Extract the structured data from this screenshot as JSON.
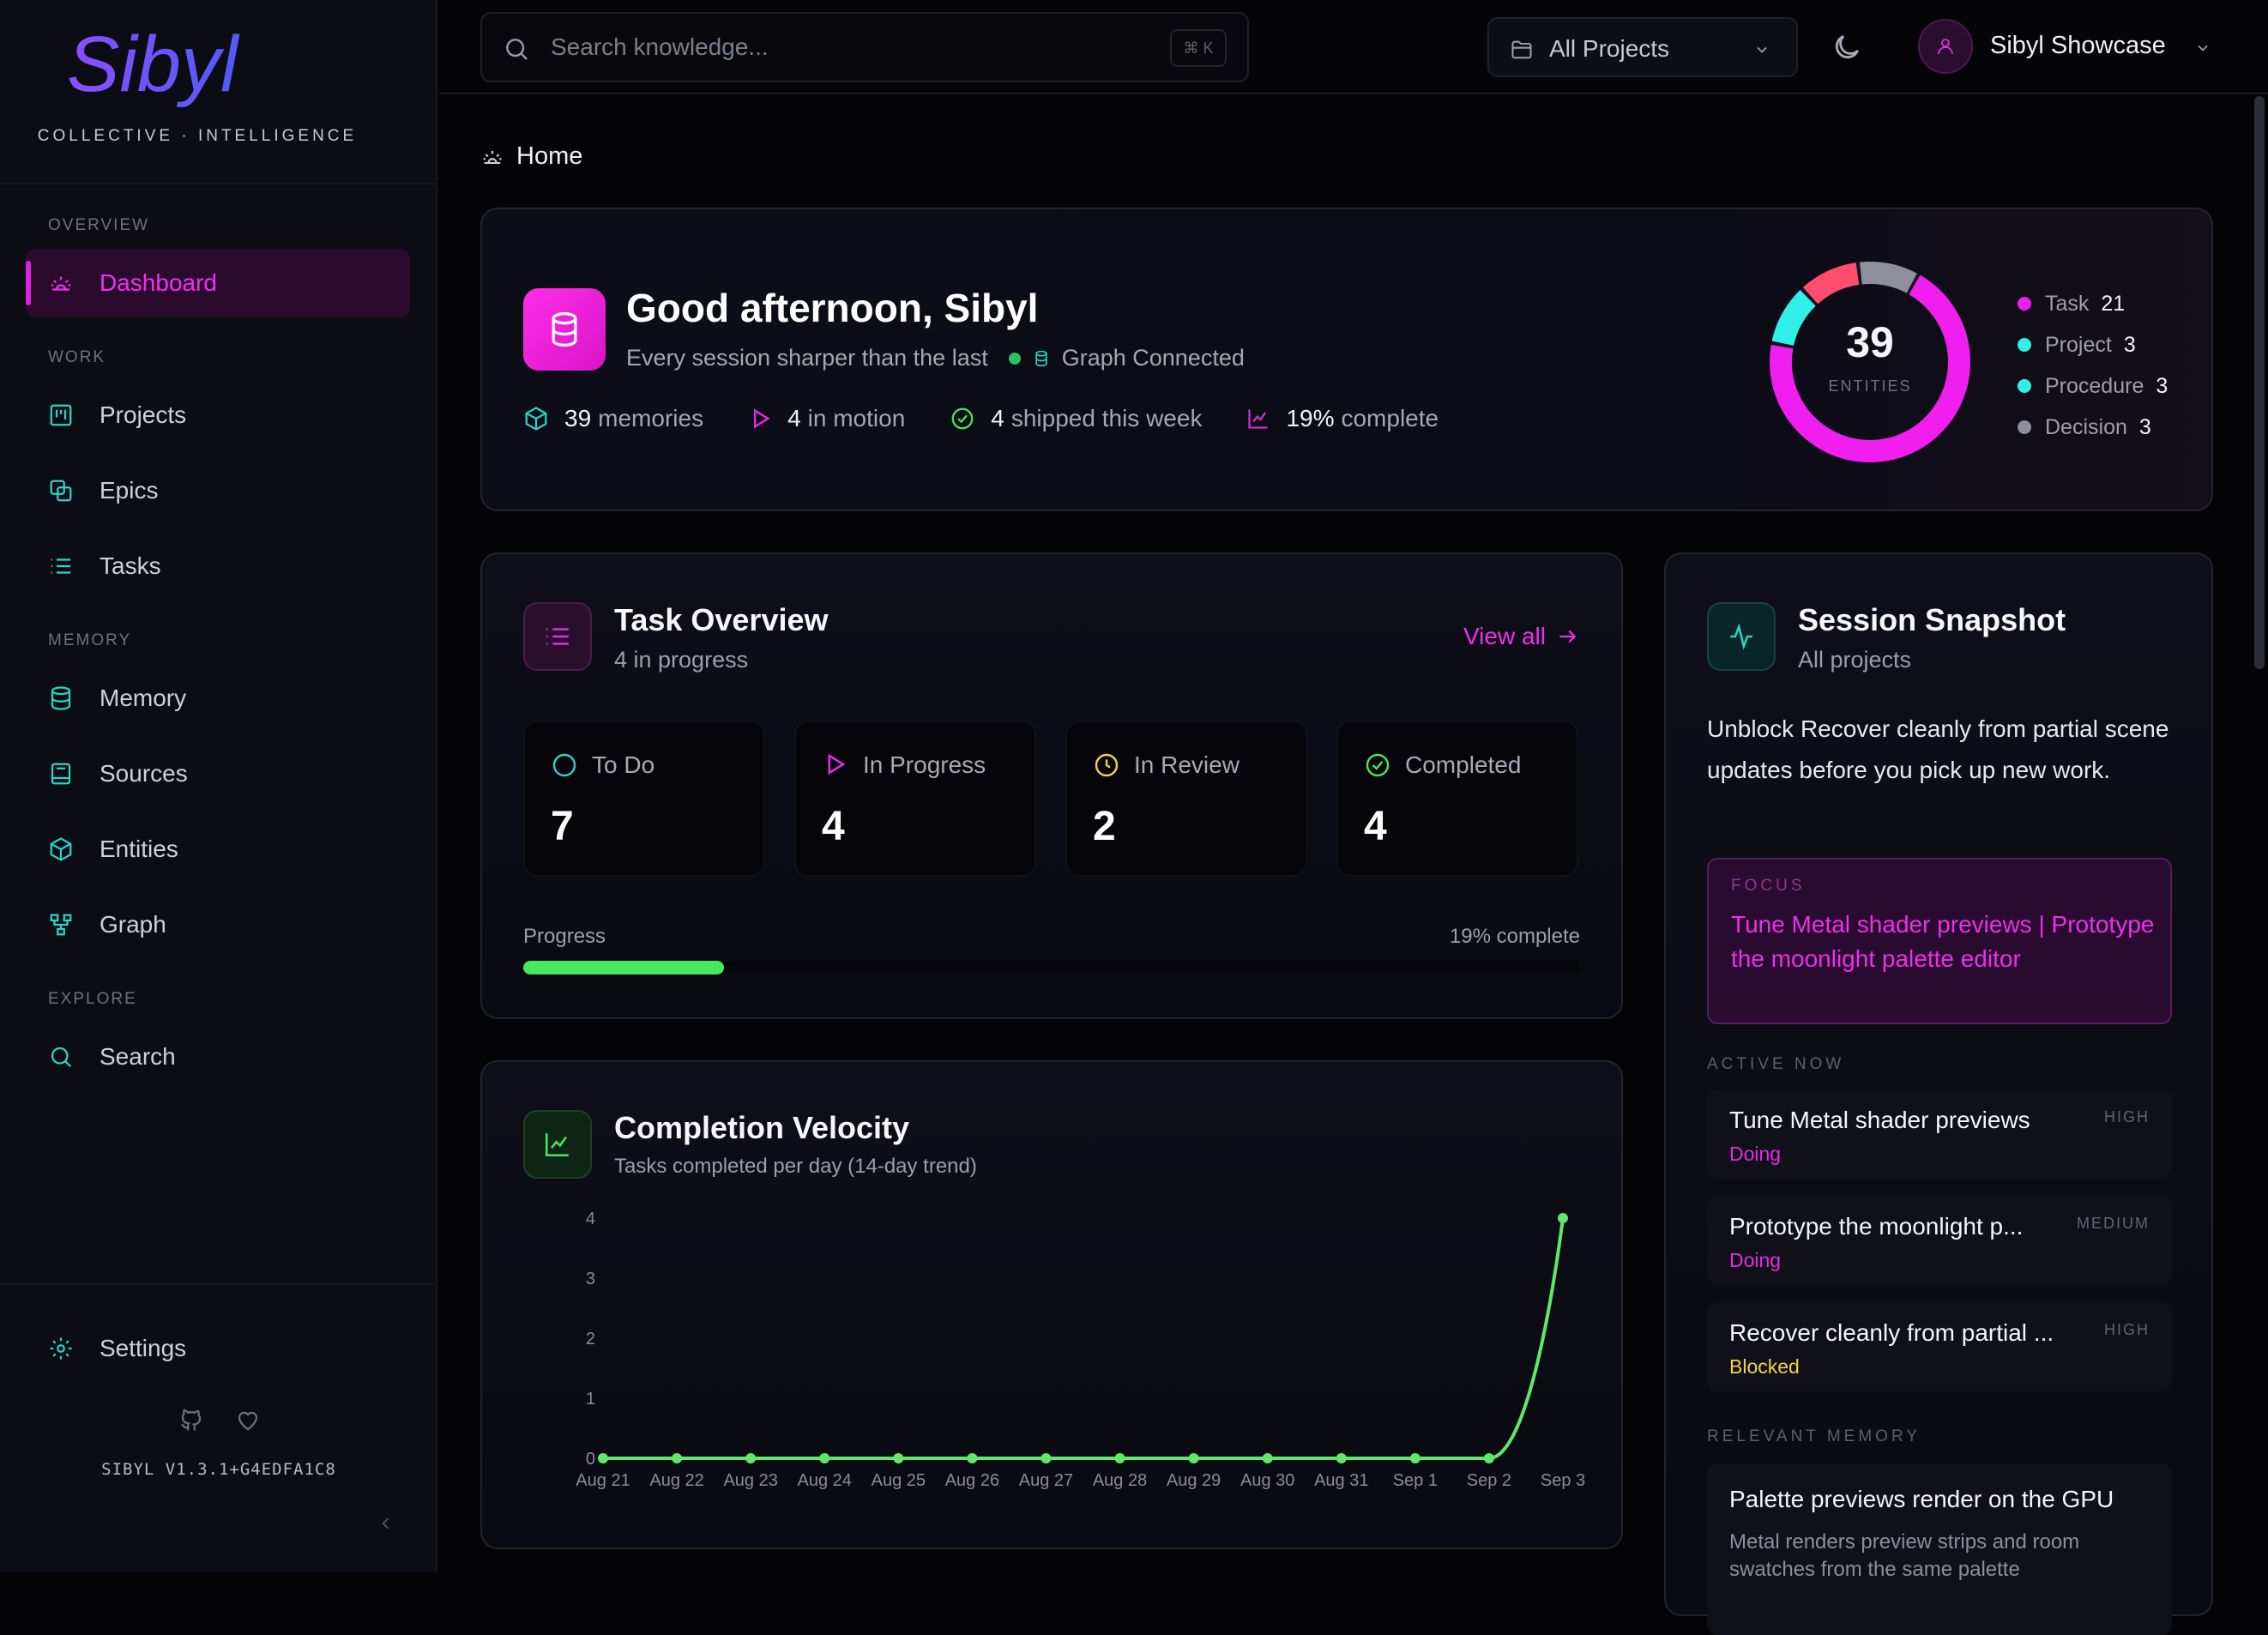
{
  "brand": {
    "name": "Sibyl",
    "tagline": "COLLECTIVE · INTELLIGENCE"
  },
  "sidebar": {
    "sections": [
      {
        "label": "OVERVIEW"
      },
      {
        "label": "WORK"
      },
      {
        "label": "MEMORY"
      },
      {
        "label": "EXPLORE"
      }
    ],
    "items": [
      {
        "label": "Dashboard",
        "icon": "sun-icon",
        "active": true
      },
      {
        "label": "Projects",
        "icon": "kanban-icon"
      },
      {
        "label": "Epics",
        "icon": "layers-icon"
      },
      {
        "label": "Tasks",
        "icon": "list-icon"
      },
      {
        "label": "Memory",
        "icon": "database-icon"
      },
      {
        "label": "Sources",
        "icon": "book-icon"
      },
      {
        "label": "Entities",
        "icon": "box-icon"
      },
      {
        "label": "Graph",
        "icon": "network-icon"
      },
      {
        "label": "Search",
        "icon": "search-icon"
      }
    ],
    "settings_label": "Settings",
    "version": "SIBYL V1.3.1+G4EDFA1C8"
  },
  "topbar": {
    "search_placeholder": "Search knowledge...",
    "shortcut": "⌘ K",
    "project_filter": "All Projects",
    "user_name": "Sibyl Showcase"
  },
  "breadcrumb": {
    "label": "Home"
  },
  "hero": {
    "title": "Good afternoon, Sibyl",
    "subtitle": "Every session sharper than the last",
    "connection": "Graph Connected",
    "stats": [
      {
        "value": "39",
        "label": "memories"
      },
      {
        "value": "4",
        "label": "in motion"
      },
      {
        "value": "4",
        "label": "shipped this week"
      },
      {
        "value": "19%",
        "label": "complete"
      }
    ],
    "entities_total": "39",
    "entities_caption": "ENTITIES",
    "entity_breakdown": [
      {
        "label": "Task",
        "count": "21",
        "color": "#f01ff0"
      },
      {
        "label": "Project",
        "count": "3",
        "color": "#2ef0e8"
      },
      {
        "label": "Procedure",
        "count": "3",
        "color": "#2ef0e8"
      },
      {
        "label": "Decision",
        "count": "3",
        "color": "#8e8f9c"
      }
    ]
  },
  "task_overview": {
    "title": "Task Overview",
    "subtitle": "4 in progress",
    "view_all": "View all",
    "statuses": [
      {
        "label": "To Do",
        "value": "7"
      },
      {
        "label": "In Progress",
        "value": "4"
      },
      {
        "label": "In Review",
        "value": "2"
      },
      {
        "label": "Completed",
        "value": "4"
      }
    ],
    "progress_label": "Progress",
    "progress_text": "19% complete",
    "progress_fraction": 0.19
  },
  "velocity": {
    "title": "Completion Velocity",
    "subtitle": "Tasks completed per day (14-day trend)"
  },
  "chart_data": {
    "type": "line",
    "x": [
      "Aug 21",
      "Aug 22",
      "Aug 23",
      "Aug 24",
      "Aug 25",
      "Aug 26",
      "Aug 27",
      "Aug 28",
      "Aug 29",
      "Aug 30",
      "Aug 31",
      "Sep 1",
      "Sep 2",
      "Sep 3"
    ],
    "series": [
      {
        "values": [
          0,
          0,
          0,
          0,
          0,
          0,
          0,
          0,
          0,
          0,
          0,
          0,
          0,
          4
        ]
      }
    ],
    "yticks": [
      "0",
      "1",
      "2",
      "3",
      "4"
    ],
    "ylim": [
      0,
      4
    ],
    "color": "#5fe86c",
    "grid": false
  },
  "session": {
    "title": "Session Snapshot",
    "subtitle": "All projects",
    "summary": "Unblock Recover cleanly from partial scene updates before you pick up new work.",
    "focus_caption": "FOCUS",
    "focus_text": "Tune Metal shader previews | Prototype the moonlight palette editor",
    "active_caption": "ACTIVE NOW",
    "active_items": [
      {
        "title": "Tune Metal shader previews",
        "status": "Doing",
        "priority": "HIGH",
        "status_color": "#e52be5"
      },
      {
        "title": "Prototype the moonlight p...",
        "status": "Doing",
        "priority": "MEDIUM",
        "status_color": "#e52be5"
      },
      {
        "title": "Recover cleanly from partial ...",
        "status": "Blocked",
        "priority": "HIGH",
        "status_color": "#f2d34a"
      }
    ],
    "memory_caption": "RELEVANT MEMORY",
    "memory_title": "Palette previews render on the GPU",
    "memory_text": "Metal renders preview strips and room swatches from the same palette"
  }
}
